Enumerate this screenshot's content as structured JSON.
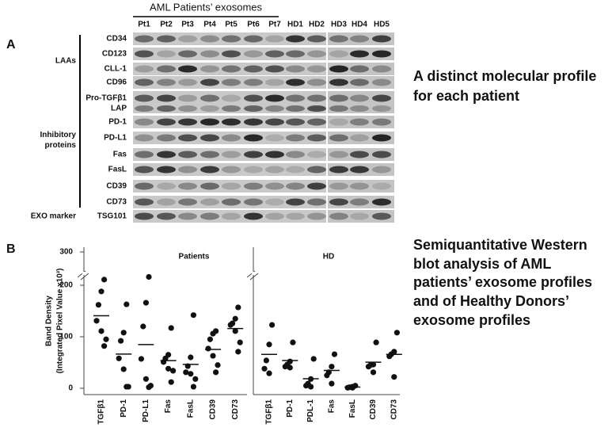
{
  "panel_a": {
    "label": "A",
    "header": "AML Patients’ exosomes",
    "lanes": [
      "Pt1",
      "Pt2",
      "Pt3",
      "Pt4",
      "Pt5",
      "Pt6",
      "Pt7",
      "HD1",
      "HD2",
      "HD3",
      "HD4",
      "HD5"
    ],
    "rows": [
      "CD34",
      "CD123",
      "CLL-1",
      "CD96",
      "Pro-TGFβ1",
      "LAP",
      "PD-1",
      "PD-L1",
      "Fas",
      "FasL",
      "CD39",
      "CD73",
      "TSG101"
    ],
    "groups": [
      "LAAs",
      "Inhibitory proteins",
      "EXO marker"
    ],
    "caption": [
      "A distinct molecular profile",
      "for each patient"
    ]
  },
  "panel_b": {
    "label": "B",
    "ylabel": [
      "Band Density",
      "(Integrated Pixel Value x10³)"
    ],
    "caption": [
      "Semiquantitative Western",
      "blot analysis of AML",
      "patients’ exosome profiles",
      "and of Healthy Donors’",
      "exosome profiles"
    ]
  },
  "chart_data": [
    {
      "type": "scatter",
      "title": "Patients",
      "categories": [
        "TGFβ1",
        "PD-1",
        "PD-L1",
        "Fas",
        "FasL",
        "CD39",
        "CD73"
      ],
      "series": [
        {
          "values": [
            217,
            188,
            162,
            131,
            111,
            95,
            82
          ]
        },
        {
          "values": [
            163,
            108,
            92,
            58,
            37,
            3,
            3
          ]
        },
        {
          "values": [
            225,
            166,
            120,
            57,
            18,
            5,
            2
          ]
        },
        {
          "values": [
            117,
            65,
            58,
            51,
            38,
            34,
            12
          ]
        },
        {
          "values": [
            142,
            60,
            43,
            31,
            28,
            18,
            3
          ]
        },
        {
          "values": [
            111,
            106,
            95,
            77,
            63,
            45,
            31
          ]
        },
        {
          "values": [
            157,
            135,
            126,
            123,
            111,
            89,
            71
          ]
        }
      ],
      "ylim": [
        0,
        300
      ],
      "yticks": [
        0,
        100,
        200,
        300
      ],
      "axis_break": 200,
      "color": "#111111"
    },
    {
      "type": "scatter",
      "title": "HD",
      "categories": [
        "TGFβ1",
        "PD-1",
        "PDL-1",
        "Fas",
        "FasL",
        "CD39",
        "CD73"
      ],
      "series": [
        {
          "values": [
            123,
            85,
            54,
            38,
            29
          ]
        },
        {
          "values": [
            89,
            52,
            46,
            42,
            40
          ]
        },
        {
          "values": [
            57,
            18,
            9,
            5,
            3
          ]
        },
        {
          "values": [
            66,
            42,
            31,
            25,
            9
          ]
        },
        {
          "values": [
            5,
            3,
            2,
            1,
            1
          ]
        },
        {
          "values": [
            89,
            46,
            45,
            42,
            31
          ]
        },
        {
          "values": [
            108,
            71,
            66,
            62,
            22
          ]
        }
      ],
      "ylim": [
        0,
        300
      ],
      "axis_break": 200,
      "color": "#111111"
    }
  ]
}
